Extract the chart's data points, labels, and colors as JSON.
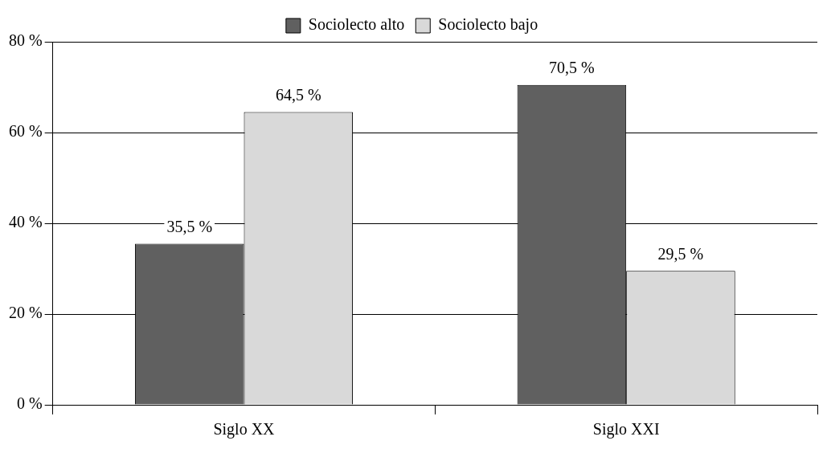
{
  "chart_data": {
    "type": "bar",
    "categories": [
      "Siglo XX",
      "Siglo XXI"
    ],
    "series": [
      {
        "name": "Sociolecto alto",
        "color": "#606060",
        "values": [
          35.5,
          70.5
        ],
        "value_labels": [
          "35,5 %",
          "70,5 %"
        ]
      },
      {
        "name": "Sociolecto bajo",
        "color": "#d9d9d9",
        "values": [
          64.5,
          29.5
        ],
        "value_labels": [
          "64,5 %",
          "29,5 %"
        ]
      }
    ],
    "ylim": [
      0,
      80
    ],
    "yticks": [
      {
        "value": 0,
        "label": "0 %"
      },
      {
        "value": 20,
        "label": "20 %"
      },
      {
        "value": 40,
        "label": "40 %"
      },
      {
        "value": 60,
        "label": "60 %"
      },
      {
        "value": 80,
        "label": "80 %"
      }
    ],
    "grid": "y",
    "legend": "top"
  }
}
